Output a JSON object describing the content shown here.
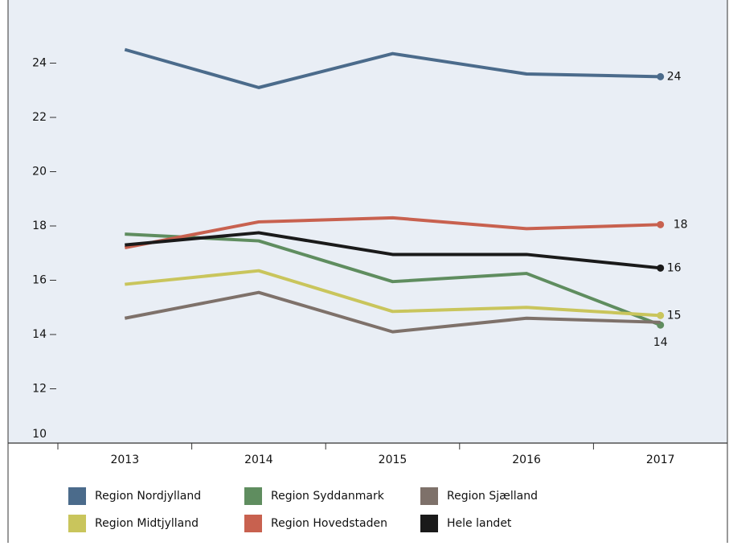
{
  "chart_data": {
    "type": "line",
    "categories": [
      "2013",
      "2014",
      "2015",
      "2016",
      "2017"
    ],
    "ylim": [
      10,
      26
    ],
    "yticks": [
      10,
      12,
      14,
      16,
      18,
      20,
      22,
      24
    ],
    "series": [
      {
        "name": "Region Nordjylland",
        "color": "#4b6b8b",
        "values": [
          24.5,
          23.1,
          24.35,
          23.6,
          23.5
        ],
        "value_labels": [
          null,
          null,
          null,
          null,
          "24"
        ]
      },
      {
        "name": "Region Syddanmark",
        "color": "#5f8d5f",
        "values": [
          17.7,
          17.45,
          15.95,
          16.25,
          14.35
        ],
        "value_labels": [
          null,
          null,
          null,
          null,
          "14"
        ]
      },
      {
        "name": "Region Sjælland",
        "color": "#7e716a",
        "values": [
          14.6,
          15.55,
          14.1,
          14.6,
          14.45
        ]
      },
      {
        "name": "Region Midtjylland",
        "color": "#c9c55c",
        "values": [
          15.85,
          16.35,
          14.85,
          15.0,
          14.7
        ],
        "value_labels": [
          null,
          null,
          null,
          null,
          "15"
        ]
      },
      {
        "name": "Region Hovedstaden",
        "color": "#c8614f",
        "values": [
          17.2,
          18.15,
          18.3,
          17.9,
          18.05
        ],
        "value_labels": [
          null,
          null,
          null,
          null,
          "18"
        ]
      },
      {
        "name": "Hele landet",
        "color": "#1a1a1a",
        "values": [
          17.3,
          17.75,
          16.95,
          16.95,
          16.45
        ],
        "value_labels": [
          null,
          null,
          null,
          null,
          "16"
        ]
      }
    ]
  }
}
